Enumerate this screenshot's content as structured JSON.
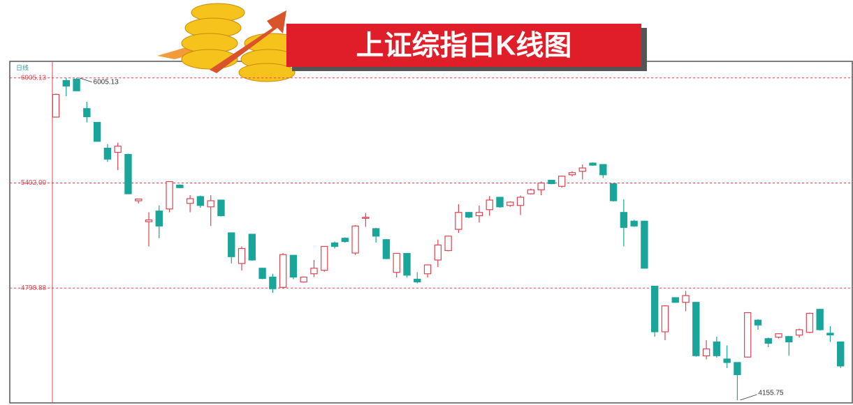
{
  "chart_data": {
    "type": "candlestick",
    "title": "上证综指日K线图",
    "axis_label": "日线",
    "open": [
      5780,
      5990,
      5998,
      5829,
      5750,
      5602,
      5578,
      5566,
      5300,
      5180,
      5241,
      5253,
      5390,
      5285,
      5324,
      5265,
      5304,
      5116,
      4940,
      5108,
      4913,
      4862,
      4803,
      4987,
      4834,
      4881,
      4901,
      5058,
      5085,
      5000,
      5200,
      5140,
      5077,
      4889,
      4998,
      4850,
      4881,
      4960,
      5014,
      5136,
      5233,
      5214,
      5249,
      5320,
      5273,
      5273,
      5340,
      5363,
      5418,
      5383,
      5449,
      5469,
      5516,
      5508,
      5398,
      5233,
      5183,
      5183,
      4810,
      4548,
      4744,
      4717,
      4717,
      4410,
      4490,
      4392,
      4372,
      4403,
      4615,
      4509,
      4517,
      4521,
      4529,
      4545,
      4677,
      4540,
      4490
    ],
    "high": [
      5915,
      6005,
      6005.13,
      5868,
      5752,
      5625,
      5633,
      5570,
      5312,
      5234,
      5273,
      5410,
      5394,
      5332,
      5330,
      5332,
      5306,
      5116,
      5038,
      5110,
      4916,
      4881,
      5000,
      4990,
      4865,
      4960,
      5040,
      5066,
      5090,
      5160,
      5230,
      5145,
      5080,
      5000,
      5000,
      4890,
      4935,
      5077,
      5100,
      5280,
      5236,
      5272,
      5327,
      5322,
      5296,
      5330,
      5370,
      5410,
      5420,
      5445,
      5470,
      5508,
      5520,
      5510,
      5400,
      5308,
      5190,
      5186,
      4812,
      4700,
      4746,
      4783,
      4720,
      4500,
      4520,
      4470,
      4372,
      4660,
      4620,
      4515,
      4540,
      4525,
      4566,
      4658,
      4680,
      4580,
      4492
    ],
    "low": [
      5780,
      5900,
      5931,
      5750,
      5638,
      5523,
      5476,
      5338,
      5285,
      5038,
      5085,
      5234,
      5372,
      5234,
      5260,
      5155,
      5210,
      4940,
      4900,
      4955,
      4850,
      4771,
      4795,
      4850,
      4830,
      4862,
      4893,
      5026,
      5060,
      4990,
      5150,
      5060,
      4965,
      4860,
      4860,
      4826,
      4860,
      4920,
      5010,
      5116,
      5200,
      5175,
      5214,
      5260,
      5265,
      5218,
      5335,
      5332,
      5395,
      5375,
      5440,
      5422,
      5500,
      5430,
      5296,
      5038,
      5150,
      4910,
      4520,
      4500,
      4715,
      4666,
      4405,
      4390,
      4400,
      4340,
      4155.75,
      4400,
      4560,
      4460,
      4510,
      4411,
      4515,
      4540,
      4555,
      4490,
      4340
    ],
    "close": [
      5910,
      5958,
      5931,
      5782,
      5641,
      5539,
      5613,
      5340,
      5310,
      5190,
      5155,
      5410,
      5375,
      5312,
      5273,
      5300,
      5214,
      4979,
      5026,
      4960,
      4854,
      4795,
      4991,
      4862,
      4862,
      4913,
      5038,
      5038,
      5066,
      5155,
      5205,
      5097,
      4968,
      4998,
      4873,
      4834,
      4932,
      5046,
      5097,
      5233,
      5206,
      5233,
      5304,
      5265,
      5292,
      5320,
      5363,
      5402,
      5398,
      5441,
      5461,
      5488,
      5504,
      5449,
      5300,
      5147,
      5155,
      4913,
      4548,
      4697,
      4717,
      4756,
      4411,
      4450,
      4411,
      4372,
      4302,
      4658,
      4587,
      4482,
      4537,
      4490,
      4560,
      4654,
      4560,
      4530,
      4352
    ],
    "up_color": "#e0434f",
    "down_color": "#1aa59a",
    "ylim": [
      4140,
      6100
    ],
    "yticks": [
      {
        "value": 4798.88,
        "label": "4798.88"
      },
      {
        "value": 5402,
        "label": "5402.00"
      },
      {
        "value": 6005.13,
        "label": "6005.13"
      }
    ],
    "grid": true,
    "annotations": [
      {
        "text": "6005.13"
      },
      {
        "text": "4155.75"
      }
    ]
  }
}
